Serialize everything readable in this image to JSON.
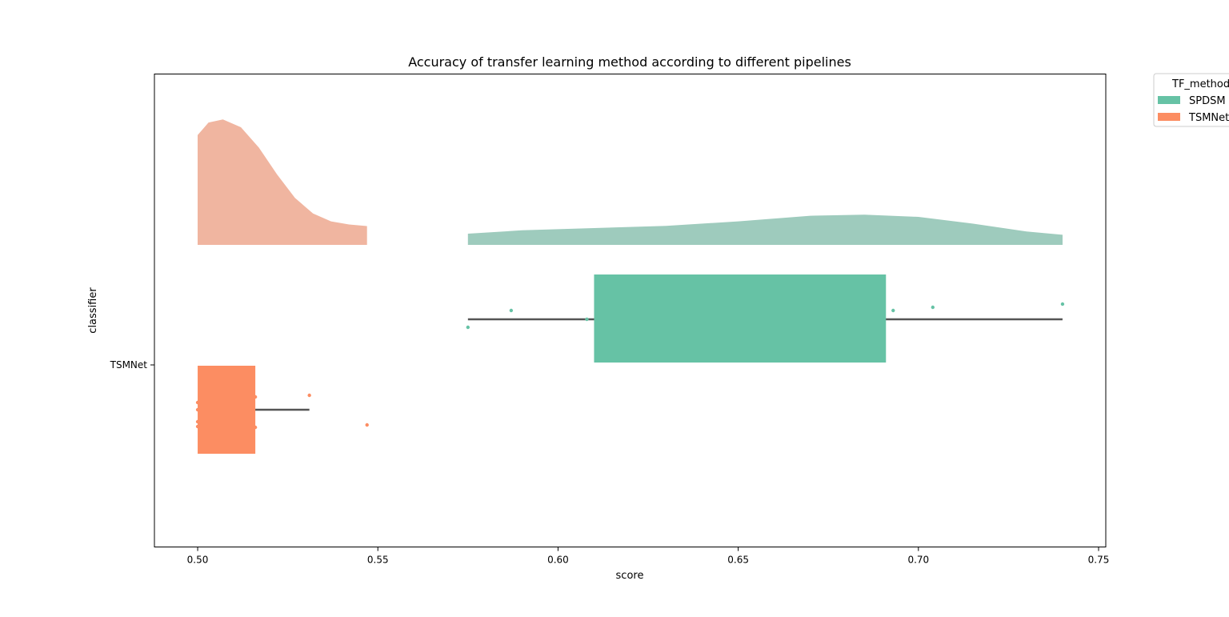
{
  "chart_data": {
    "type": "raincloud",
    "title": "Accuracy of transfer learning method according to different pipelines",
    "xlabel": "score",
    "ylabel": "classifier",
    "xlim": [
      0.488,
      0.752
    ],
    "xticks": [
      0.5,
      0.55,
      0.6,
      0.65,
      0.7,
      0.75
    ],
    "xtick_labels": [
      "0.50",
      "0.55",
      "0.60",
      "0.65",
      "0.70",
      "0.75"
    ],
    "yticks": [
      {
        "value": 0,
        "label": "TSMNet"
      }
    ],
    "ylim": [
      -0.5,
      0.5
    ],
    "grid": false,
    "legend": {
      "title": "TF_method",
      "placement": "outside top-right",
      "entries": [
        {
          "label": "SPDSM",
          "color": "#66c2a5"
        },
        {
          "label": "TSMNet",
          "color": "#fc8d62"
        }
      ]
    },
    "series": [
      {
        "name": "SPDSM",
        "box_color": "#66c2a5",
        "cloud_color": "#9ecbbd",
        "box": {
          "whisker_low": 0.575,
          "q1": 0.61,
          "median": 0.61,
          "q3": 0.691,
          "whisker_high": 0.74
        },
        "points": [
          0.575,
          0.587,
          0.608,
          0.693,
          0.704,
          0.74
        ],
        "density": {
          "x": [
            0.575,
            0.59,
            0.61,
            0.63,
            0.65,
            0.67,
            0.685,
            0.7,
            0.715,
            0.73,
            0.74
          ],
          "y": [
            0.1,
            0.13,
            0.15,
            0.17,
            0.21,
            0.26,
            0.27,
            0.25,
            0.19,
            0.12,
            0.09
          ]
        }
      },
      {
        "name": "TSMNet",
        "box_color": "#fc8d62",
        "cloud_color": "#f0b5a0",
        "box": {
          "whisker_low": 0.5,
          "q1": 0.5,
          "median": 0.5,
          "q3": 0.516,
          "whisker_high": 0.531
        },
        "points": [
          0.5,
          0.5,
          0.5,
          0.5,
          0.516,
          0.516,
          0.531,
          0.547
        ],
        "density": {
          "x": [
            0.5,
            0.503,
            0.507,
            0.512,
            0.517,
            0.522,
            0.527,
            0.532,
            0.537,
            0.542,
            0.547
          ],
          "y": [
            0.7,
            0.78,
            0.8,
            0.75,
            0.62,
            0.45,
            0.3,
            0.2,
            0.15,
            0.13,
            0.12
          ]
        }
      }
    ]
  }
}
